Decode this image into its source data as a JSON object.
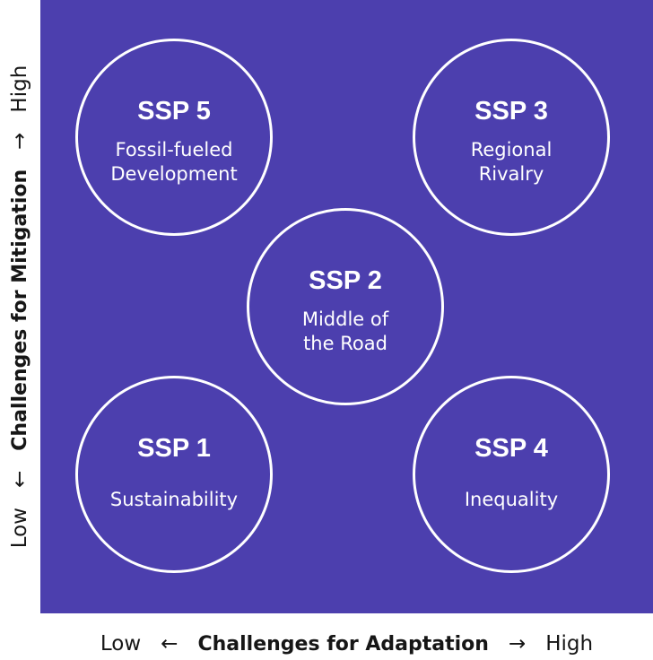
{
  "colors": {
    "panel": "#4c3fae",
    "circle_stroke": "#ffffff",
    "text": "#ffffff",
    "axis_text": "#161616"
  },
  "scenarios": [
    {
      "id": "ssp5",
      "title": "SSP 5",
      "name": "Fossil-fueled\nDevelopment",
      "quadrant": "top-left"
    },
    {
      "id": "ssp3",
      "title": "SSP 3",
      "name": "Regional\nRivalry",
      "quadrant": "top-right"
    },
    {
      "id": "ssp2",
      "title": "SSP 2",
      "name": "Middle of\nthe Road",
      "quadrant": "center"
    },
    {
      "id": "ssp1",
      "title": "SSP 1",
      "name": "Sustainability",
      "quadrant": "bottom-left"
    },
    {
      "id": "ssp4",
      "title": "SSP 4",
      "name": "Inequality",
      "quadrant": "bottom-right"
    }
  ],
  "x_axis": {
    "low": "Low",
    "low_arrow": "←",
    "label": "Challenges for Adaptation",
    "high_arrow": "→",
    "high": "High"
  },
  "y_axis": {
    "low": "Low",
    "low_arrow": "←",
    "label": "Challenges for Mitigation",
    "high_arrow": "→",
    "high": "High"
  }
}
